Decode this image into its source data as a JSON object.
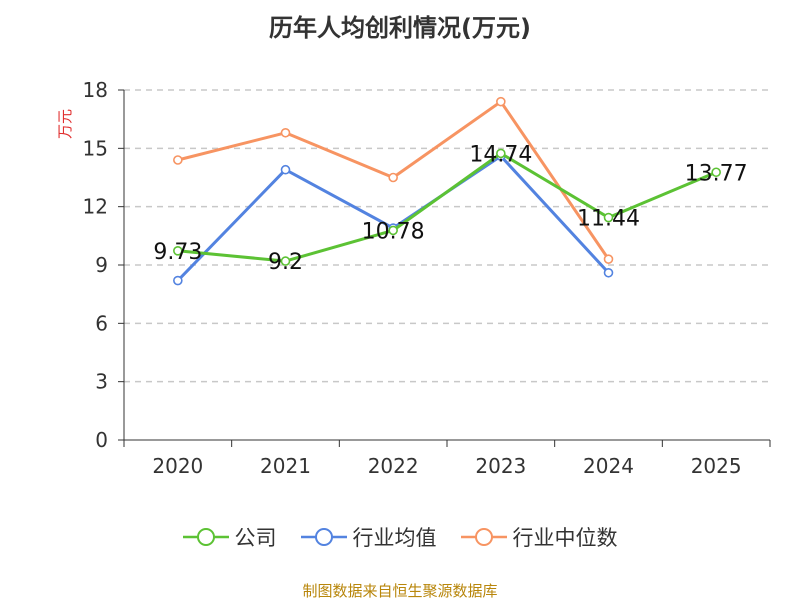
{
  "chart_data": {
    "type": "line",
    "title": "历年人均创利情况(万元)",
    "ylabel": "万元",
    "xlabel": "",
    "categories": [
      "2020",
      "2021",
      "2022",
      "2023",
      "2024",
      "2025"
    ],
    "ylim": [
      0,
      18
    ],
    "yticks": [
      0,
      3,
      6,
      9,
      12,
      15,
      18
    ],
    "grid": true,
    "legend_position": "bottom",
    "series": [
      {
        "name": "公司",
        "color": "#5cc234",
        "values": [
          9.73,
          9.2,
          10.78,
          14.74,
          11.44,
          13.77
        ],
        "labels": [
          "9.73",
          "9.2",
          "10.78",
          "14.74",
          "11.44",
          "13.77"
        ]
      },
      {
        "name": "行业均值",
        "color": "#5383e0",
        "values": [
          8.2,
          13.9,
          10.9,
          14.6,
          8.6,
          null
        ]
      },
      {
        "name": "行业中位数",
        "color": "#f79462",
        "values": [
          14.4,
          15.8,
          13.5,
          17.4,
          9.3,
          null
        ]
      }
    ]
  },
  "source": "制图数据来自恒生聚源数据库"
}
